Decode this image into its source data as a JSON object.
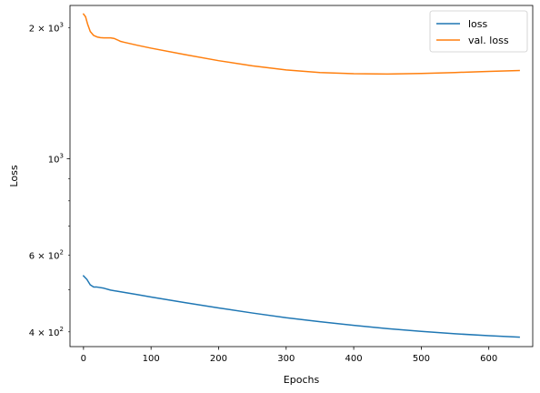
{
  "chart_data": {
    "type": "line",
    "xlabel": "Epochs",
    "ylabel": "Loss",
    "yscale": "log",
    "xlim": [
      -20,
      665
    ],
    "ylim": [
      370,
      2250
    ],
    "grid": false,
    "legend_position": "top-right",
    "x_ticks": [
      {
        "value": 0,
        "label": "0"
      },
      {
        "value": 100,
        "label": "100"
      },
      {
        "value": 200,
        "label": "200"
      },
      {
        "value": 300,
        "label": "300"
      },
      {
        "value": 400,
        "label": "400"
      },
      {
        "value": 500,
        "label": "500"
      },
      {
        "value": 600,
        "label": "600"
      }
    ],
    "y_major_ticks": [
      {
        "value": 1000,
        "label_base": "10",
        "label_exp": "3"
      }
    ],
    "y_minor_ticks": [
      {
        "value": 400,
        "label_base": "4 × 10",
        "label_exp": "2"
      },
      {
        "value": 500,
        "label_base": "",
        "label_exp": ""
      },
      {
        "value": 600,
        "label_base": "6 × 10",
        "label_exp": "2"
      },
      {
        "value": 700,
        "label_base": "",
        "label_exp": ""
      },
      {
        "value": 800,
        "label_base": "",
        "label_exp": ""
      },
      {
        "value": 900,
        "label_base": "",
        "label_exp": ""
      },
      {
        "value": 2000,
        "label_base": "2 × 10",
        "label_exp": "3"
      }
    ],
    "series": [
      {
        "name": "loss",
        "color": "#1f77b4",
        "x": [
          0,
          5,
          10,
          15,
          20,
          30,
          40,
          50,
          60,
          80,
          100,
          150,
          200,
          250,
          300,
          350,
          400,
          450,
          500,
          550,
          600,
          645
        ],
        "y": [
          538,
          528,
          513,
          507,
          507,
          504,
          499,
          496,
          493,
          487,
          481,
          467,
          454,
          442,
          431,
          422,
          414,
          407,
          401,
          396,
          392,
          389
        ]
      },
      {
        "name": "val. loss",
        "color": "#ff7f0e",
        "x": [
          0,
          3,
          6,
          10,
          15,
          20,
          25,
          30,
          40,
          45,
          50,
          55,
          60,
          80,
          100,
          150,
          200,
          250,
          300,
          350,
          400,
          450,
          500,
          550,
          600,
          645
        ],
        "y": [
          2150,
          2120,
          2040,
          1960,
          1920,
          1905,
          1898,
          1895,
          1895,
          1890,
          1876,
          1860,
          1852,
          1822,
          1795,
          1735,
          1680,
          1635,
          1600,
          1578,
          1568,
          1565,
          1570,
          1578,
          1587,
          1595
        ]
      }
    ]
  }
}
